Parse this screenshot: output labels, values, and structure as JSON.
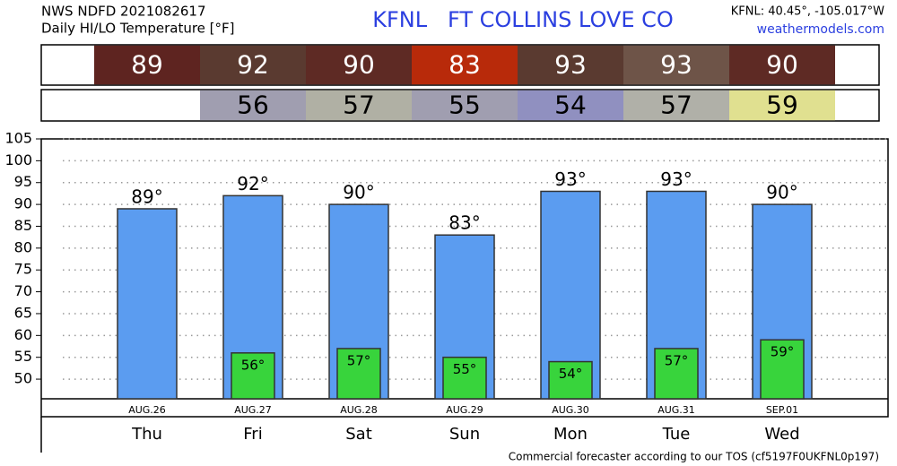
{
  "chart_data": {
    "type": "bar",
    "source": "NWS NDFD 2021082617",
    "subtitle": "Daily HI/LO Temperature [°F]",
    "title": "KFNL   FT COLLINS LOVE CO",
    "location": "KFNL: 40.45°, -105.017°W",
    "website": "weathermodels.com",
    "footer": "Commercial forecaster according to our TOS (cf5197F0UKFNL0p197)",
    "categories": [
      "Thu",
      "Fri",
      "Sat",
      "Sun",
      "Mon",
      "Tue",
      "Wed"
    ],
    "dates": [
      "AUG.26",
      "AUG.27",
      "AUG.28",
      "AUG.29",
      "AUG.30",
      "AUG.31",
      "SEP.01"
    ],
    "series": [
      {
        "color": "#5b9cf0",
        "values": [
          89,
          92,
          90,
          83,
          93,
          93,
          90
        ],
        "value_labels": [
          "89°",
          "92°",
          "90°",
          "83°",
          "93°",
          "93°",
          "90°"
        ],
        "box_colors": [
          "#5e2420",
          "#5a3a30",
          "#5e2a24",
          "#b82a0a",
          "#5a3a30",
          "#6e5448",
          "#5e2a24"
        ]
      },
      {
        "color": "#38d43c",
        "values": [
          null,
          56,
          57,
          55,
          54,
          57,
          59
        ],
        "value_labels": [
          null,
          "56°",
          "57°",
          "55°",
          "54°",
          "57°",
          "59°"
        ],
        "box_colors": [
          null,
          "#a09eb0",
          "#b0b0a4",
          "#a09eb0",
          "#9090c0",
          "#b0b0a8",
          "#e0e090"
        ]
      }
    ],
    "ylim": [
      45.5,
      105
    ],
    "yticks": [
      50,
      55,
      60,
      65,
      70,
      75,
      80,
      85,
      90,
      95,
      100,
      105
    ],
    "grid": true
  }
}
